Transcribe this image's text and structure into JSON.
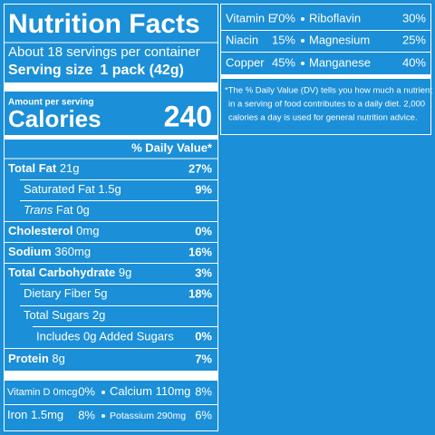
{
  "title": "Nutrition Facts",
  "servings": "About 18 servings per container",
  "serving_size": {
    "label": "Serving size",
    "value": "1 pack (42g)"
  },
  "amount_per_serving": "Amount per serving",
  "calories": {
    "label": "Calories",
    "value": 240
  },
  "daily_value_header": "% Daily Value*",
  "nutrients": [
    {
      "name": "Total Fat",
      "amount": "21g",
      "dv": "27%"
    },
    {
      "name": "Saturated Fat",
      "amount": "1.5g",
      "dv": "9%"
    },
    {
      "name_italic": "Trans",
      "name": "Fat",
      "amount": "0g"
    },
    {
      "name": "Cholesterol",
      "amount": "0mg",
      "dv": "0%"
    },
    {
      "name": "Sodium",
      "amount": "360mg",
      "dv": "16%"
    },
    {
      "name": "Total Carbohydrate",
      "amount": "9g",
      "dv": "3%"
    },
    {
      "name": "Dietary Fiber",
      "amount": "5g",
      "dv": "18%"
    },
    {
      "name": "Total Sugars",
      "amount": "2g"
    },
    {
      "name": "Includes 0g Added Sugars",
      "dv": "0%"
    },
    {
      "name": "Protein",
      "amount": "8g",
      "dv": "7%"
    }
  ],
  "vitamins": [
    {
      "name": "Vitamin D",
      "amount": "0mcg",
      "dv": "0%"
    },
    {
      "name": "Calcium",
      "amount": "110mg",
      "dv": "8%"
    },
    {
      "name": "Iron",
      "amount": "1.5mg",
      "dv": "8%"
    },
    {
      "name": "Potassium",
      "amount": "290mg",
      "dv": "6%"
    }
  ],
  "extra_vitamins": [
    {
      "name": "Vitamin E",
      "dv": "70%"
    },
    {
      "name": "Riboflavin",
      "dv": "30%"
    },
    {
      "name": "Niacin",
      "dv": "15%"
    },
    {
      "name": "Magnesium",
      "dv": "25%"
    },
    {
      "name": "Copper",
      "dv": "45%"
    },
    {
      "name": "Manganese",
      "dv": "40%"
    }
  ],
  "footnote": [
    "*The % Daily Value (DV) tells you how much a nutrient",
    "in a serving of food contributes to a daily diet. 2,000",
    "calories a day is used for general nutrition advice."
  ]
}
